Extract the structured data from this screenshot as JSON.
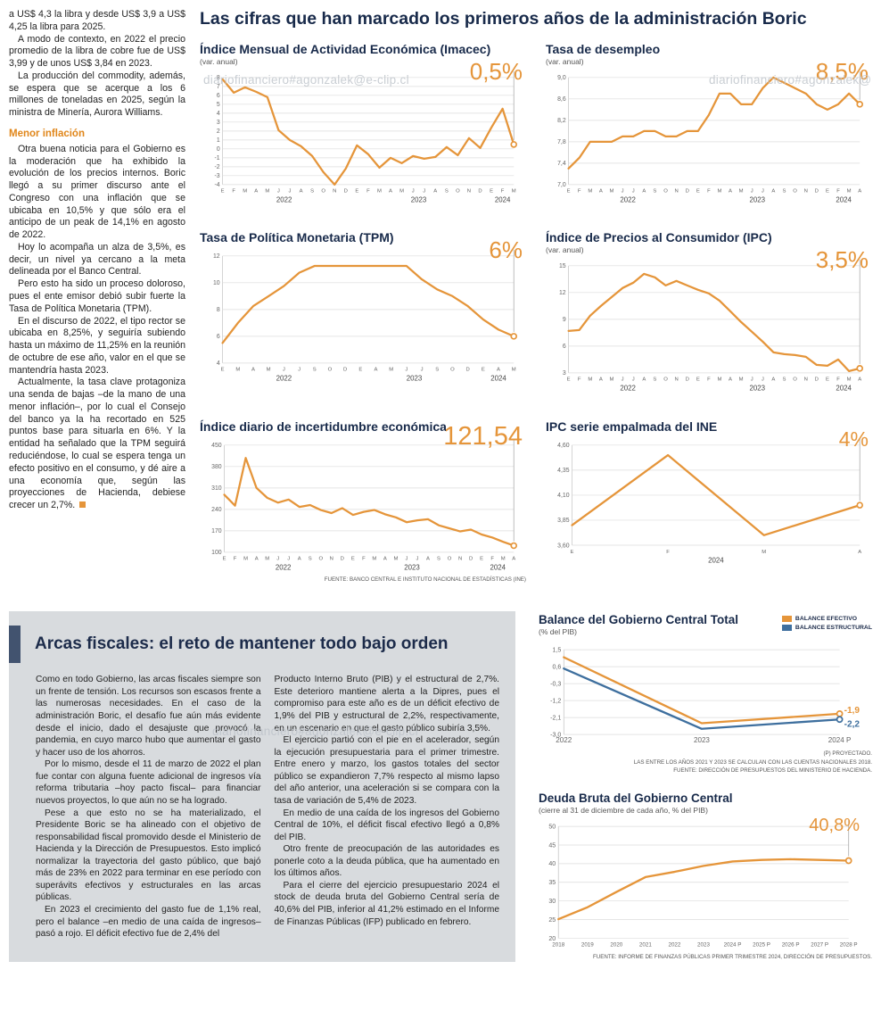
{
  "accent": {
    "orange": "#E5953A",
    "blue": "#3E6F9E",
    "navy": "#182A4A",
    "gray_box": "#D8DBDE"
  },
  "watermark": {
    "text": "diariofinanciero#agonzalek@e-clip.cl"
  },
  "main_title": "Las cifras que han marcado los primeros años de la administración Boric",
  "left_column": {
    "paras_top": [
      "a US$ 4,3 la libra y desde US$ 3,9 a US$ 4,25 la libra para 2025.",
      "A modo de contexto, en 2022 el precio promedio de la libra de cobre fue de US$ 3,99 y de unos US$ 3,84 en 2023.",
      "La producción del commodity, además, se espera que se acerque a los 6 millones de toneladas en 2025, según la ministra de Minería, Aurora Williams."
    ],
    "heading": "Menor inflación",
    "paras_inflation": [
      "Otra buena noticia para el Gobierno es la moderación que ha exhibido la evolución de los precios internos. Boric llegó a su primer discurso ante el Congreso con una inflación que se ubicaba en 10,5% y que sólo era el anticipo de un peak de 14,1% en agosto de 2022.",
      "Hoy lo acompaña un alza de 3,5%, es decir, un nivel ya cercano a la meta delineada por el Banco Central.",
      "Pero esto ha sido un proceso doloroso, pues el ente emisor debió subir fuerte la Tasa de Política Monetaria (TPM).",
      "En el discurso de 2022, el tipo rector se ubicaba en 8,25%, y seguiría subiendo hasta un máximo de 11,25% en la reunión de octubre de ese año, valor en el que se mantendría hasta 2023.",
      "Actualmente, la tasa clave protagoniza una senda de bajas –de la mano de una menor inflación–, por lo cual el Consejo del banco ya la ha recortado en 525 puntos base para situarla en 6%. Y la entidad ha señalado que la TPM seguirá reduciéndose, lo cual se espera tenga un efecto positivo en el consumo, y dé aire a una economía que, según las proyecciones de Hacienda, debiese crecer un 2,7%."
    ]
  },
  "charts_source": "FUENTE: BANCO CENTRAL E INSTITUTO NACIONAL DE ESTADÍSTICAS (INE)",
  "charts": {
    "imacec": {
      "title": "Índice Mensual de Actividad Económica (Imacec)",
      "subtitle": "(var. anual)",
      "highlight": "0,5%",
      "chart_data": {
        "type": "line",
        "ml": 26,
        "mb": 26,
        "ylabels": [
          "8",
          "7",
          "6",
          "5",
          "4",
          "3",
          "2",
          "1",
          "0",
          "-1",
          "-2",
          "-3",
          "-4"
        ],
        "yvals": [
          8,
          7,
          6,
          5,
          4,
          3,
          2,
          1,
          0,
          -1,
          -2,
          -3,
          -4
        ],
        "ymin": -4,
        "ymax": 8,
        "xlabels": [
          "E",
          "F",
          "M",
          "A",
          "M",
          "J",
          "J",
          "A",
          "S",
          "O",
          "N",
          "D",
          "E",
          "F",
          "M",
          "A",
          "M",
          "J",
          "J",
          "A",
          "S",
          "O",
          "N",
          "D",
          "E",
          "F",
          "M"
        ],
        "years": [
          {
            "label": "2022",
            "start": 0,
            "end": 11
          },
          {
            "label": "2023",
            "start": 12,
            "end": 23
          },
          {
            "label": "2024",
            "start": 24,
            "end": 26
          }
        ],
        "series": [
          {
            "name": "Imacec",
            "color": "#E5953A",
            "end_line": true,
            "values": [
              7.8,
              6.3,
              6.9,
              6.4,
              5.8,
              2.1,
              1.0,
              0.3,
              -0.8,
              -2.6,
              -4.0,
              -2.2,
              0.4,
              -0.6,
              -2.1,
              -1.0,
              -1.6,
              -0.8,
              -1.1,
              -0.9,
              0.2,
              -0.7,
              1.2,
              0.1,
              2.4,
              4.5,
              0.5
            ]
          }
        ]
      }
    },
    "desempleo": {
      "title": "Tasa de desempleo",
      "subtitle": "(var. anual)",
      "highlight": "8,5%",
      "chart_data": {
        "type": "line",
        "ml": 26,
        "mb": 26,
        "ylabels": [
          "9,0",
          "8,6",
          "8,2",
          "7,8",
          "7,4",
          "7,0"
        ],
        "yvals": [
          9.0,
          8.6,
          8.2,
          7.8,
          7.4,
          7.0
        ],
        "ymin": 7.0,
        "ymax": 9.0,
        "xlabels": [
          "E",
          "F",
          "M",
          "A",
          "M",
          "J",
          "J",
          "A",
          "S",
          "O",
          "N",
          "D",
          "E",
          "F",
          "M",
          "A",
          "M",
          "J",
          "J",
          "A",
          "S",
          "O",
          "N",
          "D",
          "E",
          "F",
          "M",
          "A"
        ],
        "years": [
          {
            "label": "2022",
            "start": 0,
            "end": 11
          },
          {
            "label": "2023",
            "start": 12,
            "end": 23
          },
          {
            "label": "2024",
            "start": 24,
            "end": 27
          }
        ],
        "series": [
          {
            "name": "Tasa de desempleo",
            "color": "#E5953A",
            "end_line": true,
            "values": [
              7.3,
              7.5,
              7.8,
              7.8,
              7.8,
              7.9,
              7.9,
              8.0,
              8.0,
              7.9,
              7.9,
              8.0,
              8.0,
              8.3,
              8.7,
              8.7,
              8.5,
              8.5,
              8.8,
              9.0,
              8.9,
              8.8,
              8.7,
              8.5,
              8.4,
              8.5,
              8.7,
              8.5
            ]
          }
        ]
      }
    },
    "tpm": {
      "title": "Tasa de Política Monetaria (TPM)",
      "subtitle": "",
      "highlight": "6%",
      "chart_data": {
        "type": "line",
        "ml": 26,
        "mb": 26,
        "ylabels": [
          "12",
          "10",
          "8",
          "6",
          "4"
        ],
        "yvals": [
          12,
          10,
          8,
          6,
          4
        ],
        "ymin": 4,
        "ymax": 12,
        "xlabels": [
          "E",
          "M",
          "A",
          "M",
          "J",
          "J",
          "S",
          "O",
          "D",
          "E",
          "A",
          "M",
          "J",
          "J",
          "S",
          "O",
          "D",
          "E",
          "A",
          "M"
        ],
        "years": [
          {
            "label": "2022",
            "start": 0,
            "end": 8
          },
          {
            "label": "2023",
            "start": 9,
            "end": 16
          },
          {
            "label": "2024",
            "start": 17,
            "end": 19
          }
        ],
        "series": [
          {
            "name": "TPM",
            "color": "#E5953A",
            "end_line": true,
            "values": [
              5.5,
              7.0,
              8.25,
              9.0,
              9.75,
              10.75,
              11.25,
              11.25,
              11.25,
              11.25,
              11.25,
              11.25,
              11.25,
              10.25,
              9.5,
              9.0,
              8.25,
              7.25,
              6.5,
              6.0
            ]
          }
        ]
      }
    },
    "ipc": {
      "title": "Índice de Precios al Consumidor (IPC)",
      "subtitle": "(var. anual)",
      "highlight": "3,5%",
      "chart_data": {
        "type": "line",
        "ml": 26,
        "mb": 26,
        "ylabels": [
          "15",
          "12",
          "9",
          "6",
          "3"
        ],
        "yvals": [
          15,
          12,
          9,
          6,
          3
        ],
        "ymin": 3,
        "ymax": 15,
        "xlabels": [
          "E",
          "F",
          "M",
          "A",
          "M",
          "J",
          "J",
          "A",
          "S",
          "O",
          "N",
          "D",
          "E",
          "F",
          "M",
          "A",
          "M",
          "J",
          "J",
          "A",
          "S",
          "O",
          "N",
          "D",
          "E",
          "F",
          "M",
          "A"
        ],
        "years": [
          {
            "label": "2022",
            "start": 0,
            "end": 11
          },
          {
            "label": "2023",
            "start": 12,
            "end": 23
          },
          {
            "label": "2024",
            "start": 24,
            "end": 27
          }
        ],
        "series": [
          {
            "name": "IPC",
            "color": "#E5953A",
            "end_line": true,
            "values": [
              7.7,
              7.8,
              9.4,
              10.5,
              11.5,
              12.5,
              13.1,
              14.1,
              13.7,
              12.8,
              13.3,
              12.8,
              12.3,
              11.9,
              11.1,
              9.9,
              8.7,
              7.6,
              6.5,
              5.3,
              5.1,
              5.0,
              4.8,
              3.9,
              3.8,
              4.5,
              3.2,
              3.5
            ]
          }
        ]
      }
    },
    "incertidumbre": {
      "title": "Índice diario de incertidumbre económica",
      "subtitle": "",
      "highlight": "121,54",
      "chart_data": {
        "type": "line",
        "ml": 28,
        "mb": 26,
        "ylabels": [
          "450",
          "380",
          "310",
          "240",
          "170",
          "100"
        ],
        "yvals": [
          450,
          380,
          310,
          240,
          170,
          100
        ],
        "ymin": 100,
        "ymax": 450,
        "xlabels": [
          "E",
          "F",
          "M",
          "A",
          "M",
          "J",
          "J",
          "A",
          "S",
          "O",
          "N",
          "D",
          "E",
          "F",
          "M",
          "A",
          "M",
          "J",
          "J",
          "A",
          "S",
          "O",
          "N",
          "D",
          "E",
          "F",
          "M",
          "A"
        ],
        "years": [
          {
            "label": "2022",
            "start": 0,
            "end": 11
          },
          {
            "label": "2023",
            "start": 12,
            "end": 23
          },
          {
            "label": "2024",
            "start": 24,
            "end": 27
          }
        ],
        "series": [
          {
            "name": "Incertidumbre económica",
            "color": "#E5953A",
            "end_line": true,
            "values": [
              288,
              252,
              408,
              310,
              278,
              262,
              272,
              248,
              254,
              238,
              228,
              244,
              222,
              232,
              238,
              224,
              214,
              198,
              204,
              208,
              188,
              178,
              168,
              174,
              158,
              148,
              134,
              121.54
            ]
          }
        ]
      }
    },
    "ipc_ine": {
      "title": "IPC serie empalmada del INE",
      "subtitle": "",
      "highlight": "4%",
      "chart_data": {
        "type": "line",
        "ml": 30,
        "mb": 26,
        "ylabels": [
          "4,60",
          "4,35",
          "4,10",
          "3,85",
          "3,60"
        ],
        "yvals": [
          4.6,
          4.35,
          4.1,
          3.85,
          3.6
        ],
        "ymin": 3.6,
        "ymax": 4.6,
        "xlabels": [
          "E",
          "F",
          "M",
          "A"
        ],
        "years": [
          {
            "label": "2024",
            "start": 0,
            "end": 3
          }
        ],
        "series": [
          {
            "name": "IPC serie empalmada",
            "color": "#E5953A",
            "end_line": true,
            "values": [
              3.8,
              4.5,
              3.7,
              4.0
            ]
          }
        ]
      }
    }
  },
  "fiscal": {
    "title": "Arcas fiscales: el reto de mantener todo bajo orden",
    "col1_paras": [
      "Como en todo Gobierno, las arcas fiscales siempre son un frente de tensión. Los recursos son escasos frente a las numerosas necesidades. En el caso de la administración Boric, el desafío fue aún más evidente desde el inicio, dado el desajuste que provocó la pandemia, en cuyo marco hubo que aumentar el gasto y hacer uso de los ahorros.",
      "Por lo mismo, desde el 11 de marzo de 2022 el plan fue contar con alguna fuente adicional de ingresos vía reforma tributaria –hoy pacto fiscal– para financiar nuevos proyectos, lo que aún no se ha logrado.",
      "Pese a que esto no se ha materializado, el Presidente Boric se ha alineado con el objetivo de responsabilidad fiscal promovido desde el Ministerio de Hacienda y la Dirección de Presupuestos. Esto implicó normalizar la trayectoria del gasto público, que bajó más de 23% en 2022 para terminar en ese período con superávits efectivos y estructurales en las arcas públicas.",
      "En 2023 el crecimiento del gasto fue de 1,1% real, pero el balance –en medio de una caída de ingresos– pasó a rojo. El déficit efectivo fue de 2,4% del"
    ],
    "col2_paras": [
      "Producto Interno Bruto (PIB) y el estructural de 2,7%. Este deterioro mantiene alerta a la Dipres, pues el compromiso para este año es de un déficit efectivo de 1,9% del PIB y estructural de 2,2%, respectivamente, en un escenario en que el gasto público subiría 3,5%.",
      "El ejercicio partió con el pie en el acelerador, según la ejecución presupuestaria para el primer trimestre. Entre enero y marzo, los gastos totales del sector público se expandieron 7,7% respecto al mismo lapso del año anterior, una aceleración si se compara con la tasa de variación de 5,4% de 2023.",
      "En medio de una caída de los ingresos del Gobierno Central de 10%, el déficit fiscal efectivo llegó a 0,8% del PIB.",
      "Otro frente de preocupación de las autoridades es ponerle coto a la deuda pública, que ha aumentado en los últimos años.",
      "Para el cierre del ejercicio presupuestario 2024 el stock de deuda bruta del Gobierno Central sería de 40,6% del PIB, inferior al 41,2% estimado en el Informe de Finanzas Públicas (IFP) publicado en febrero."
    ]
  },
  "balance_chart": {
    "title": "Balance del Gobierno Central Total",
    "subtitle": "(% del PIB)",
    "legend": [
      "BALANCE EFECTIVO",
      "BALANCE ESTRUCTURAL"
    ],
    "notes": [
      "(P) PROYECTADO.",
      "LAS ENTRE LOS AÑOS 2021 Y 2023 SE CALCULAN  CON LAS CUENTAS NACIONALES 2018.",
      "FUENTE: DIRECCIÓN DE PRESUPUESTOS DEL MINISTERIO DE HACIENDA."
    ],
    "chart_data": {
      "type": "line",
      "ml": 28,
      "mr": 36,
      "mb": 16,
      "xfont": 8,
      "ylabels": [
        "1,5",
        "0,6",
        "-0,3",
        "-1,2",
        "-2,1",
        "-3,0"
      ],
      "yvals": [
        1.5,
        0.6,
        -0.3,
        -1.2,
        -2.1,
        -3.0
      ],
      "ymin": -3.0,
      "ymax": 1.5,
      "xlabels": [
        "2022",
        "2023",
        "2024 P"
      ],
      "series": [
        {
          "name": "BALANCE EFECTIVO",
          "color": "#E5953A",
          "values": [
            1.1,
            -2.4,
            -1.9
          ],
          "end_label": "-1,9",
          "end_label_dy": -1
        },
        {
          "name": "BALANCE ESTRUCTURAL",
          "color": "#3E6F9E",
          "values": [
            0.5,
            -2.7,
            -2.2
          ],
          "end_label": "-2,2",
          "end_label_dy": 8
        }
      ]
    }
  },
  "debt_chart": {
    "title": "Deuda Bruta del Gobierno Central",
    "subtitle": "(cierre al 31 de diciembre de cada año, % del PIB)",
    "highlight": "40,8%",
    "note": "FUENTE: INFORME DE FINANZAS PÚBLICAS PRIMER TRIMESTRE 2024, DIRECCIÓN DE PRESUPUESTOS.",
    "chart_data": {
      "type": "line",
      "ml": 22,
      "mr": 26,
      "mb": 16,
      "xfont": 6.2,
      "ylabels": [
        "50",
        "45",
        "40",
        "35",
        "30",
        "25",
        "20"
      ],
      "yvals": [
        50,
        45,
        40,
        35,
        30,
        25,
        20
      ],
      "ymin": 20,
      "ymax": 50,
      "xlabels": [
        "2018",
        "2019",
        "2020",
        "2021",
        "2022",
        "2023",
        "2024 P",
        "2025 P",
        "2026 P",
        "2027 P",
        "2028 P"
      ],
      "series": [
        {
          "name": "Deuda bruta",
          "color": "#E5953A",
          "end_line": true,
          "values": [
            25.1,
            28.3,
            32.4,
            36.4,
            37.8,
            39.4,
            40.6,
            41.0,
            41.2,
            41.0,
            40.8
          ]
        }
      ]
    }
  }
}
